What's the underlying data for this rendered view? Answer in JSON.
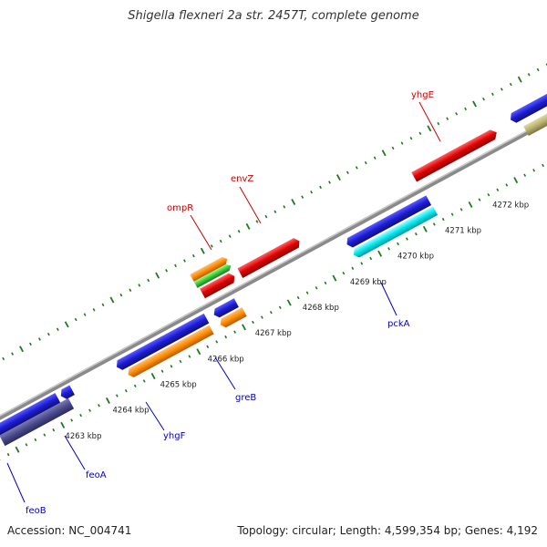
{
  "title": "Shigella flexneri 2a str. 2457T, complete genome",
  "footer": {
    "accession": "Accession: NC_004741",
    "summary": "Topology: circular; Length: 4,599,354 bp; Genes: 4,192"
  },
  "colors": {
    "backbone": "#8a8a8a",
    "tick": "#1e7a1e",
    "label_forward": "#cc0000",
    "label_reverse": "#0000cc",
    "ticklabel": "#222222"
  },
  "scale": {
    "unit": "kbp",
    "labels": [
      "4263 kbp",
      "4264 kbp",
      "4265 kbp",
      "4266 kbp",
      "4267 kbp",
      "4268 kbp",
      "4269 kbp",
      "4270 kbp",
      "4271 kbp",
      "4272 kbp"
    ]
  },
  "genes": [
    {
      "name": "feoB",
      "strand": "-",
      "color": "#4a4a8c"
    },
    {
      "name": "feoA",
      "strand": "-",
      "color": "#1c1cd4"
    },
    {
      "name": "yhgF",
      "strand": "-",
      "color": "#ff8c00"
    },
    {
      "name": "greB",
      "strand": "-",
      "color": "#ff8c00"
    },
    {
      "name": "ompR",
      "strand": "+",
      "color": "#ff8c00"
    },
    {
      "name": "envZ",
      "strand": "+",
      "color": "#e00000"
    },
    {
      "name": "pckA",
      "strand": "-",
      "color": "#00e5ee"
    },
    {
      "name": "yhgE",
      "strand": "+",
      "color": "#e00000"
    }
  ]
}
